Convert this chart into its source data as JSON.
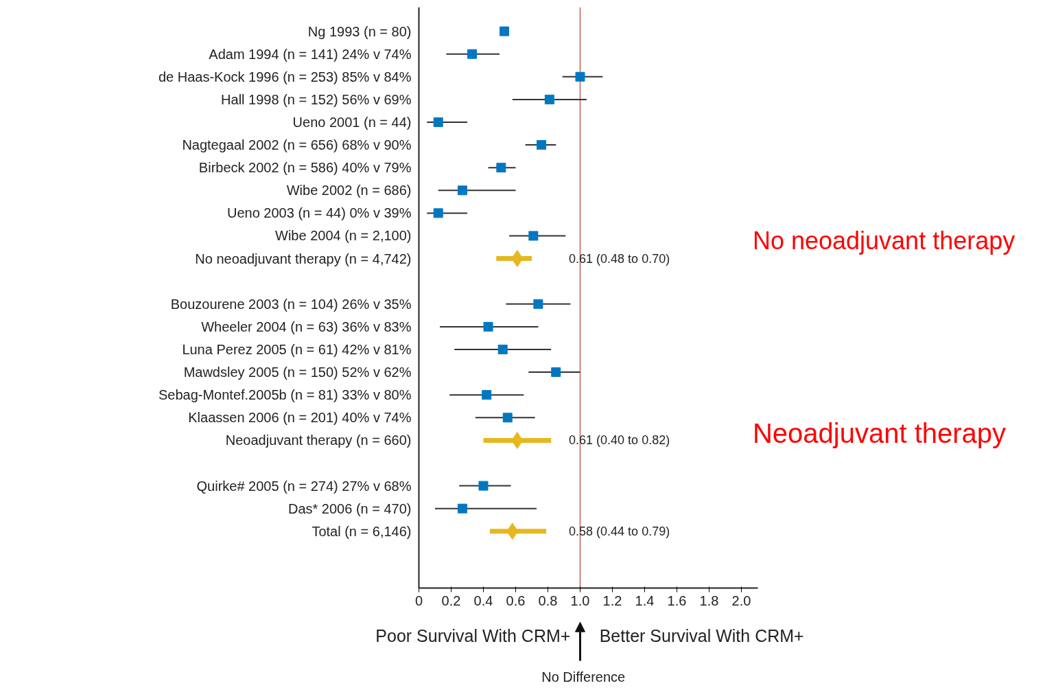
{
  "chart_data": {
    "type": "scatter",
    "orientation": "horizontal",
    "categories": [
      "Ng 1993 (n = 80)",
      "Adam 1994 (n = 141) 24% v 74%",
      "de Haas-Kock 1996 (n = 253) 85% v 84%",
      "Hall 1998 (n = 152) 56% v 69%",
      "Ueno 2001 (n = 44)",
      "Nagtegaal 2002 (n = 656) 68% v 90%",
      "Birbeck 2002 (n = 586) 40% v 79%",
      "Wibe 2002 (n = 686)",
      "Ueno 2003 (n = 44) 0% v 39%",
      "Wibe 2004 (n = 2,100)",
      "No neoadjuvant therapy (n = 4,742)",
      null,
      "Bouzourene 2003 (n = 104) 26% v 35%",
      "Wheeler 2004 (n = 63) 36% v 83%",
      "Luna Perez 2005 (n = 61) 42% v 81%",
      "Mawdsley 2005 (n = 150) 52% v 62%",
      "Sebag-Montef.2005b (n = 81) 33% v 80%",
      "Klaassen 2006 (n = 201) 40% v 74%",
      "Neoadjuvant therapy (n = 660)",
      null,
      "Quirke# 2005 (n = 274) 27% v 68%",
      "Das* 2006 (n = 470)",
      "Total (n = 6,146)",
      null,
      null
    ],
    "series": [
      {
        "color": "#0078c1",
        "marker": "square",
        "values": [
          0.53,
          0.33,
          1.0,
          0.81,
          0.12,
          0.76,
          0.51,
          0.27,
          0.12,
          0.71,
          null,
          null,
          0.74,
          0.43,
          0.52,
          0.85,
          0.42,
          0.55,
          null,
          null,
          0.4,
          0.27,
          null,
          null,
          null
        ],
        "errors": [
          null,
          [
            0.17,
            0.5
          ],
          [
            0.89,
            1.14
          ],
          [
            0.58,
            1.04
          ],
          [
            0.05,
            0.3
          ],
          [
            0.66,
            0.85
          ],
          [
            0.43,
            0.6
          ],
          [
            0.12,
            0.6
          ],
          [
            0.05,
            0.3
          ],
          [
            0.56,
            0.91
          ],
          null,
          null,
          [
            0.54,
            0.94
          ],
          [
            0.13,
            0.74
          ],
          [
            0.22,
            0.82
          ],
          [
            0.68,
            1.0
          ],
          [
            0.19,
            0.65
          ],
          [
            0.35,
            0.72
          ],
          null,
          null,
          [
            0.25,
            0.57
          ],
          [
            0.1,
            0.73
          ],
          null,
          null,
          null
        ]
      },
      {
        "color": "#e6b820",
        "marker": "diamond",
        "values": [
          null,
          null,
          null,
          null,
          null,
          null,
          null,
          null,
          null,
          null,
          0.61,
          null,
          null,
          null,
          null,
          null,
          null,
          null,
          0.61,
          null,
          null,
          null,
          0.58,
          null,
          null
        ],
        "errors": [
          null,
          null,
          null,
          null,
          null,
          null,
          null,
          null,
          null,
          null,
          [
            0.48,
            0.7
          ],
          null,
          null,
          null,
          null,
          null,
          null,
          null,
          [
            0.4,
            0.82
          ],
          null,
          null,
          null,
          [
            0.44,
            0.79
          ],
          null,
          null
        ]
      }
    ],
    "xlim": [
      0,
      2.1
    ],
    "xticks": [
      0,
      0.2,
      0.4,
      0.6,
      0.8,
      {
        "value": 1.0,
        "label": "1.0"
      },
      1.2,
      1.4,
      1.6,
      1.8,
      {
        "value": 2.0,
        "label": "2.0"
      }
    ],
    "ref_lines": [
      {
        "axis": "x",
        "value": 1.0,
        "color": "#c0605a"
      }
    ],
    "annotations": [
      "0.61 (0.48 to 0.70)",
      "0.61 (0.40 to 0.82)",
      "0.58 (0.44 to 0.79)",
      "No neoadjuvant therapy",
      "Neoadjuvant therapy",
      "Poor Survival With CRM+",
      "Better Survival With CRM+",
      "No Difference"
    ]
  }
}
